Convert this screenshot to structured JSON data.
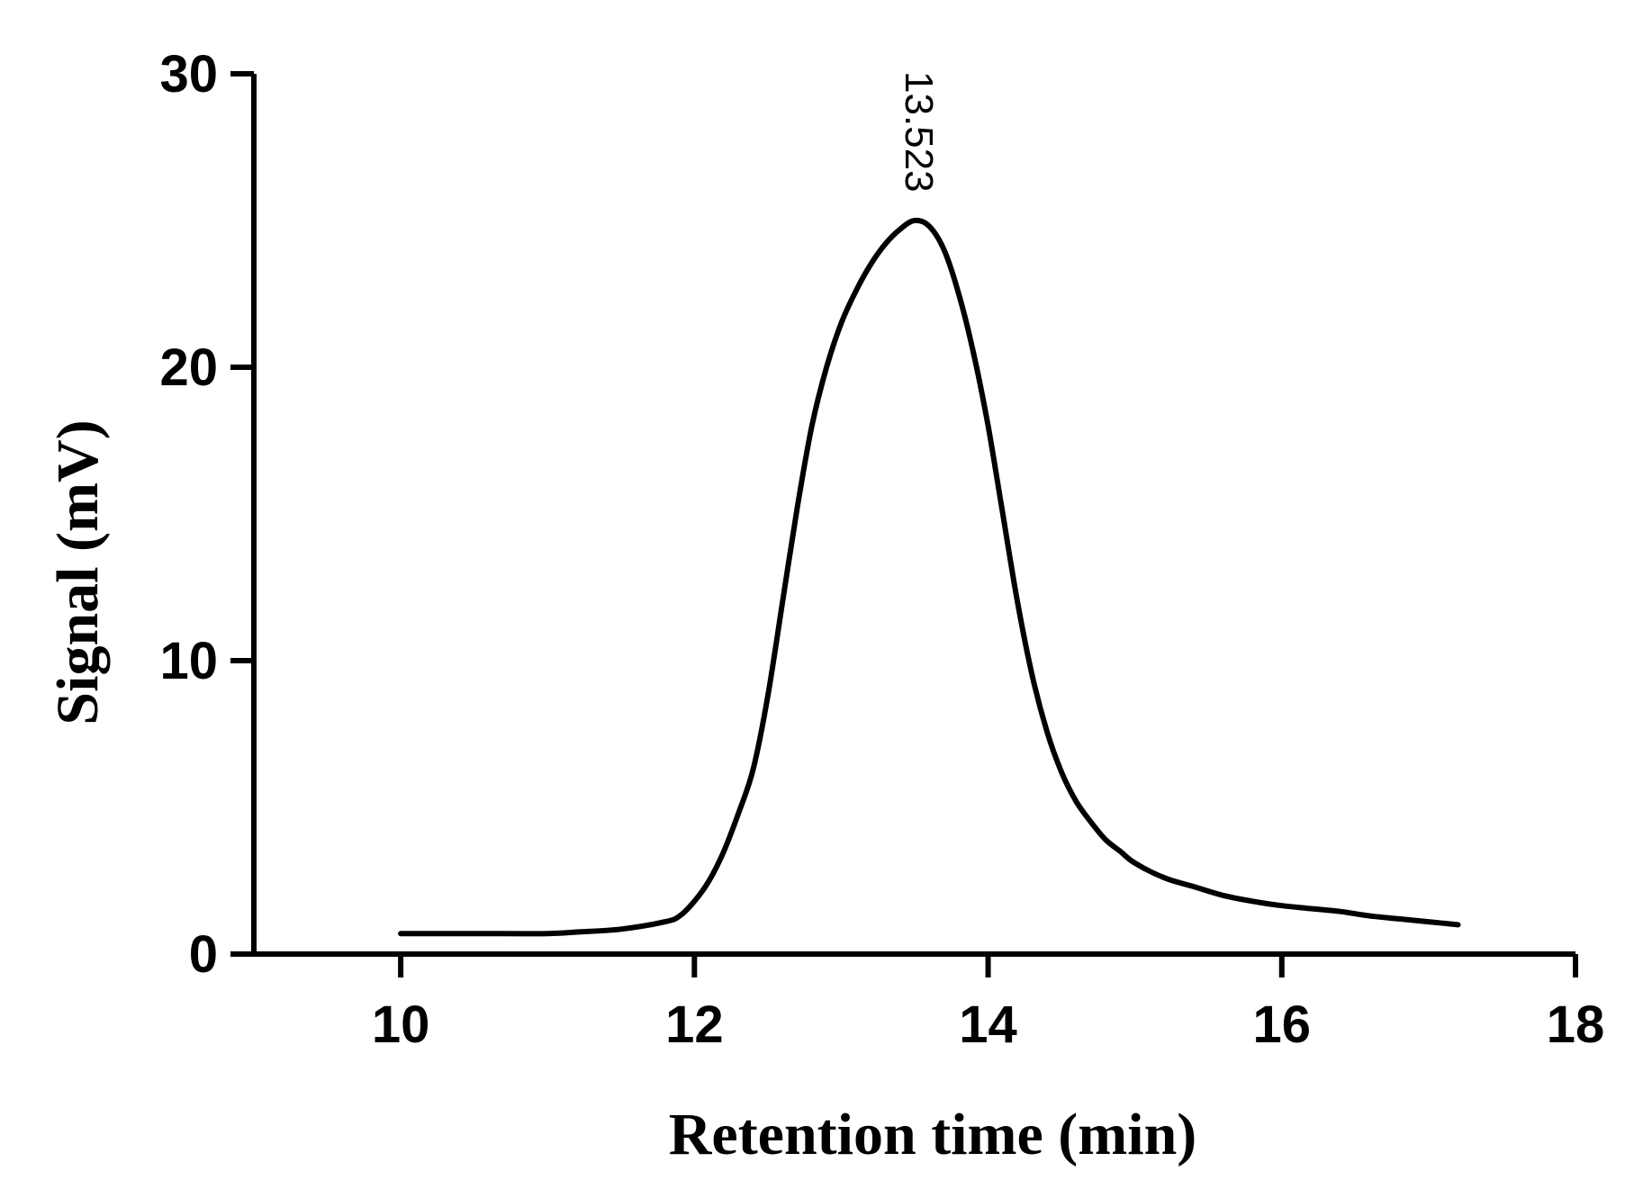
{
  "chart_data": {
    "type": "line",
    "title": "",
    "xlabel": "Retention time (min)",
    "ylabel": "Signal (mV)",
    "xlim": [
      9,
      18
    ],
    "ylim": [
      0,
      30
    ],
    "xticks": [
      10,
      12,
      14,
      16,
      18
    ],
    "xtick_labels": [
      "10",
      "12",
      "14",
      "16",
      "18"
    ],
    "yticks": [
      0,
      10,
      20,
      30
    ],
    "ytick_labels": [
      "0",
      "10",
      "20",
      "30"
    ],
    "grid": false,
    "legend": "none",
    "line_color": "#000000",
    "series": [
      {
        "x": [
          10.0,
          10.5,
          11.0,
          11.2,
          11.5,
          11.8,
          11.9,
          12.0,
          12.1,
          12.2,
          12.3,
          12.4,
          12.5,
          12.6,
          12.7,
          12.8,
          12.9,
          13.0,
          13.1,
          13.2,
          13.3,
          13.4,
          13.5,
          13.6,
          13.7,
          13.8,
          13.9,
          14.0,
          14.1,
          14.2,
          14.3,
          14.4,
          14.5,
          14.6,
          14.7,
          14.8,
          14.9,
          15.0,
          15.2,
          15.4,
          15.6,
          15.8,
          16.0,
          16.2,
          16.4,
          16.6,
          16.8,
          17.0,
          17.2
        ],
        "y": [
          0.7,
          0.7,
          0.7,
          0.75,
          0.85,
          1.1,
          1.3,
          1.8,
          2.5,
          3.5,
          4.8,
          6.3,
          8.8,
          12.0,
          15.2,
          18.0,
          20.0,
          21.5,
          22.6,
          23.5,
          24.2,
          24.7,
          25.0,
          24.8,
          24.0,
          22.5,
          20.5,
          18.0,
          15.0,
          12.0,
          9.5,
          7.6,
          6.2,
          5.2,
          4.5,
          3.9,
          3.5,
          3.1,
          2.6,
          2.3,
          2.0,
          1.8,
          1.65,
          1.55,
          1.45,
          1.3,
          1.2,
          1.1,
          1.0
        ]
      }
    ],
    "annotations": [
      {
        "text": "13.523",
        "x": 13.523,
        "y": 25.0
      }
    ]
  }
}
